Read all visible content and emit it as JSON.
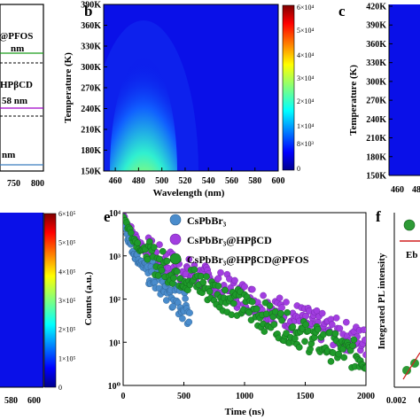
{
  "panels": {
    "a": {
      "labels": [
        "@PFOS",
        "nm",
        "HPβCD",
        "58 nm",
        "nm"
      ],
      "label_colors": [
        "#1a9e1a",
        "#1a9e1a",
        "#a000c8",
        "#a000c8",
        "#3a7dbf"
      ],
      "x_ticks": [
        "750",
        "800"
      ]
    },
    "b": {
      "letter": "b",
      "ylabel": "Temperature (K)",
      "xlabel": "Wavelength (nm)",
      "y_ticks": [
        "150K",
        "180K",
        "210K",
        "240K",
        "270K",
        "300K",
        "330K",
        "360K",
        "390K"
      ],
      "x_ticks": [
        "460",
        "480",
        "500",
        "520",
        "540",
        "560",
        "580",
        "600"
      ],
      "colorbar_ticks": [
        "0",
        "8×10³",
        "1×10⁴",
        "2×10⁴",
        "3×10⁴",
        "4×10⁴",
        "5×10⁴",
        "6×10⁴"
      ]
    },
    "c": {
      "letter": "c",
      "ylabel": "Temperature (K)",
      "y_ticks": [
        "150K",
        "180K",
        "210K",
        "240K",
        "270K",
        "300K",
        "330K",
        "360K",
        "390K",
        "420K"
      ],
      "x_ticks": [
        "460",
        "480"
      ]
    },
    "d": {
      "x_ticks": [
        "580",
        "600"
      ],
      "colorbar_ticks": [
        "0",
        "1×10⁵",
        "2×10⁵",
        "3×10⁵",
        "4×10⁵",
        "5×10⁵",
        "6×10⁵"
      ]
    },
    "e": {
      "letter": "e",
      "ylabel": "Counts (a.u.)",
      "xlabel": "Time (ns)",
      "x_ticks": [
        "0",
        "500",
        "1000",
        "1500",
        "2000"
      ],
      "y_ticks": [
        "10⁰",
        "10¹",
        "10²",
        "10³",
        "10⁴"
      ],
      "legend": [
        {
          "label": "CsPbBr₃",
          "color": "#4a8ccc"
        },
        {
          "label": "CsPbBr₃@HPβCD",
          "color": "#a23ee0"
        },
        {
          "label": "CsPbBr₃@HPβCD@PFOS",
          "color": "#1e9a2a"
        }
      ]
    },
    "f": {
      "letter": "f",
      "ylabel": "Integrated PL intensity",
      "label": "Eb =",
      "x_ticks": [
        "0.002",
        "0"
      ]
    }
  },
  "chart_data": [
    {
      "type": "heatmap",
      "panel": "b",
      "xlabel": "Wavelength (nm)",
      "ylabel": "Temperature (K)",
      "xlim": [
        450,
        600
      ],
      "ylim": [
        150,
        390
      ],
      "peak": {
        "wavelength": 522,
        "temperature": 150
      },
      "colorbar_range": [
        0,
        60000
      ]
    },
    {
      "type": "scatter",
      "panel": "e",
      "xlabel": "Time (ns)",
      "ylabel": "Counts (a.u.)",
      "xlim": [
        0,
        2000
      ],
      "ylim": [
        1,
        10000
      ],
      "yscale": "log",
      "series": [
        {
          "name": "CsPbBr₃",
          "tau": 25,
          "floor": 2.5,
          "tail_end": 550
        },
        {
          "name": "CsPbBr₃@HPβCD",
          "tau": 60,
          "floor": 3.0,
          "tail_end": 2000
        },
        {
          "name": "CsPbBr₃@HPβCD@PFOS",
          "tau": 50,
          "floor": 2.0,
          "tail_end": 2000
        }
      ]
    }
  ]
}
